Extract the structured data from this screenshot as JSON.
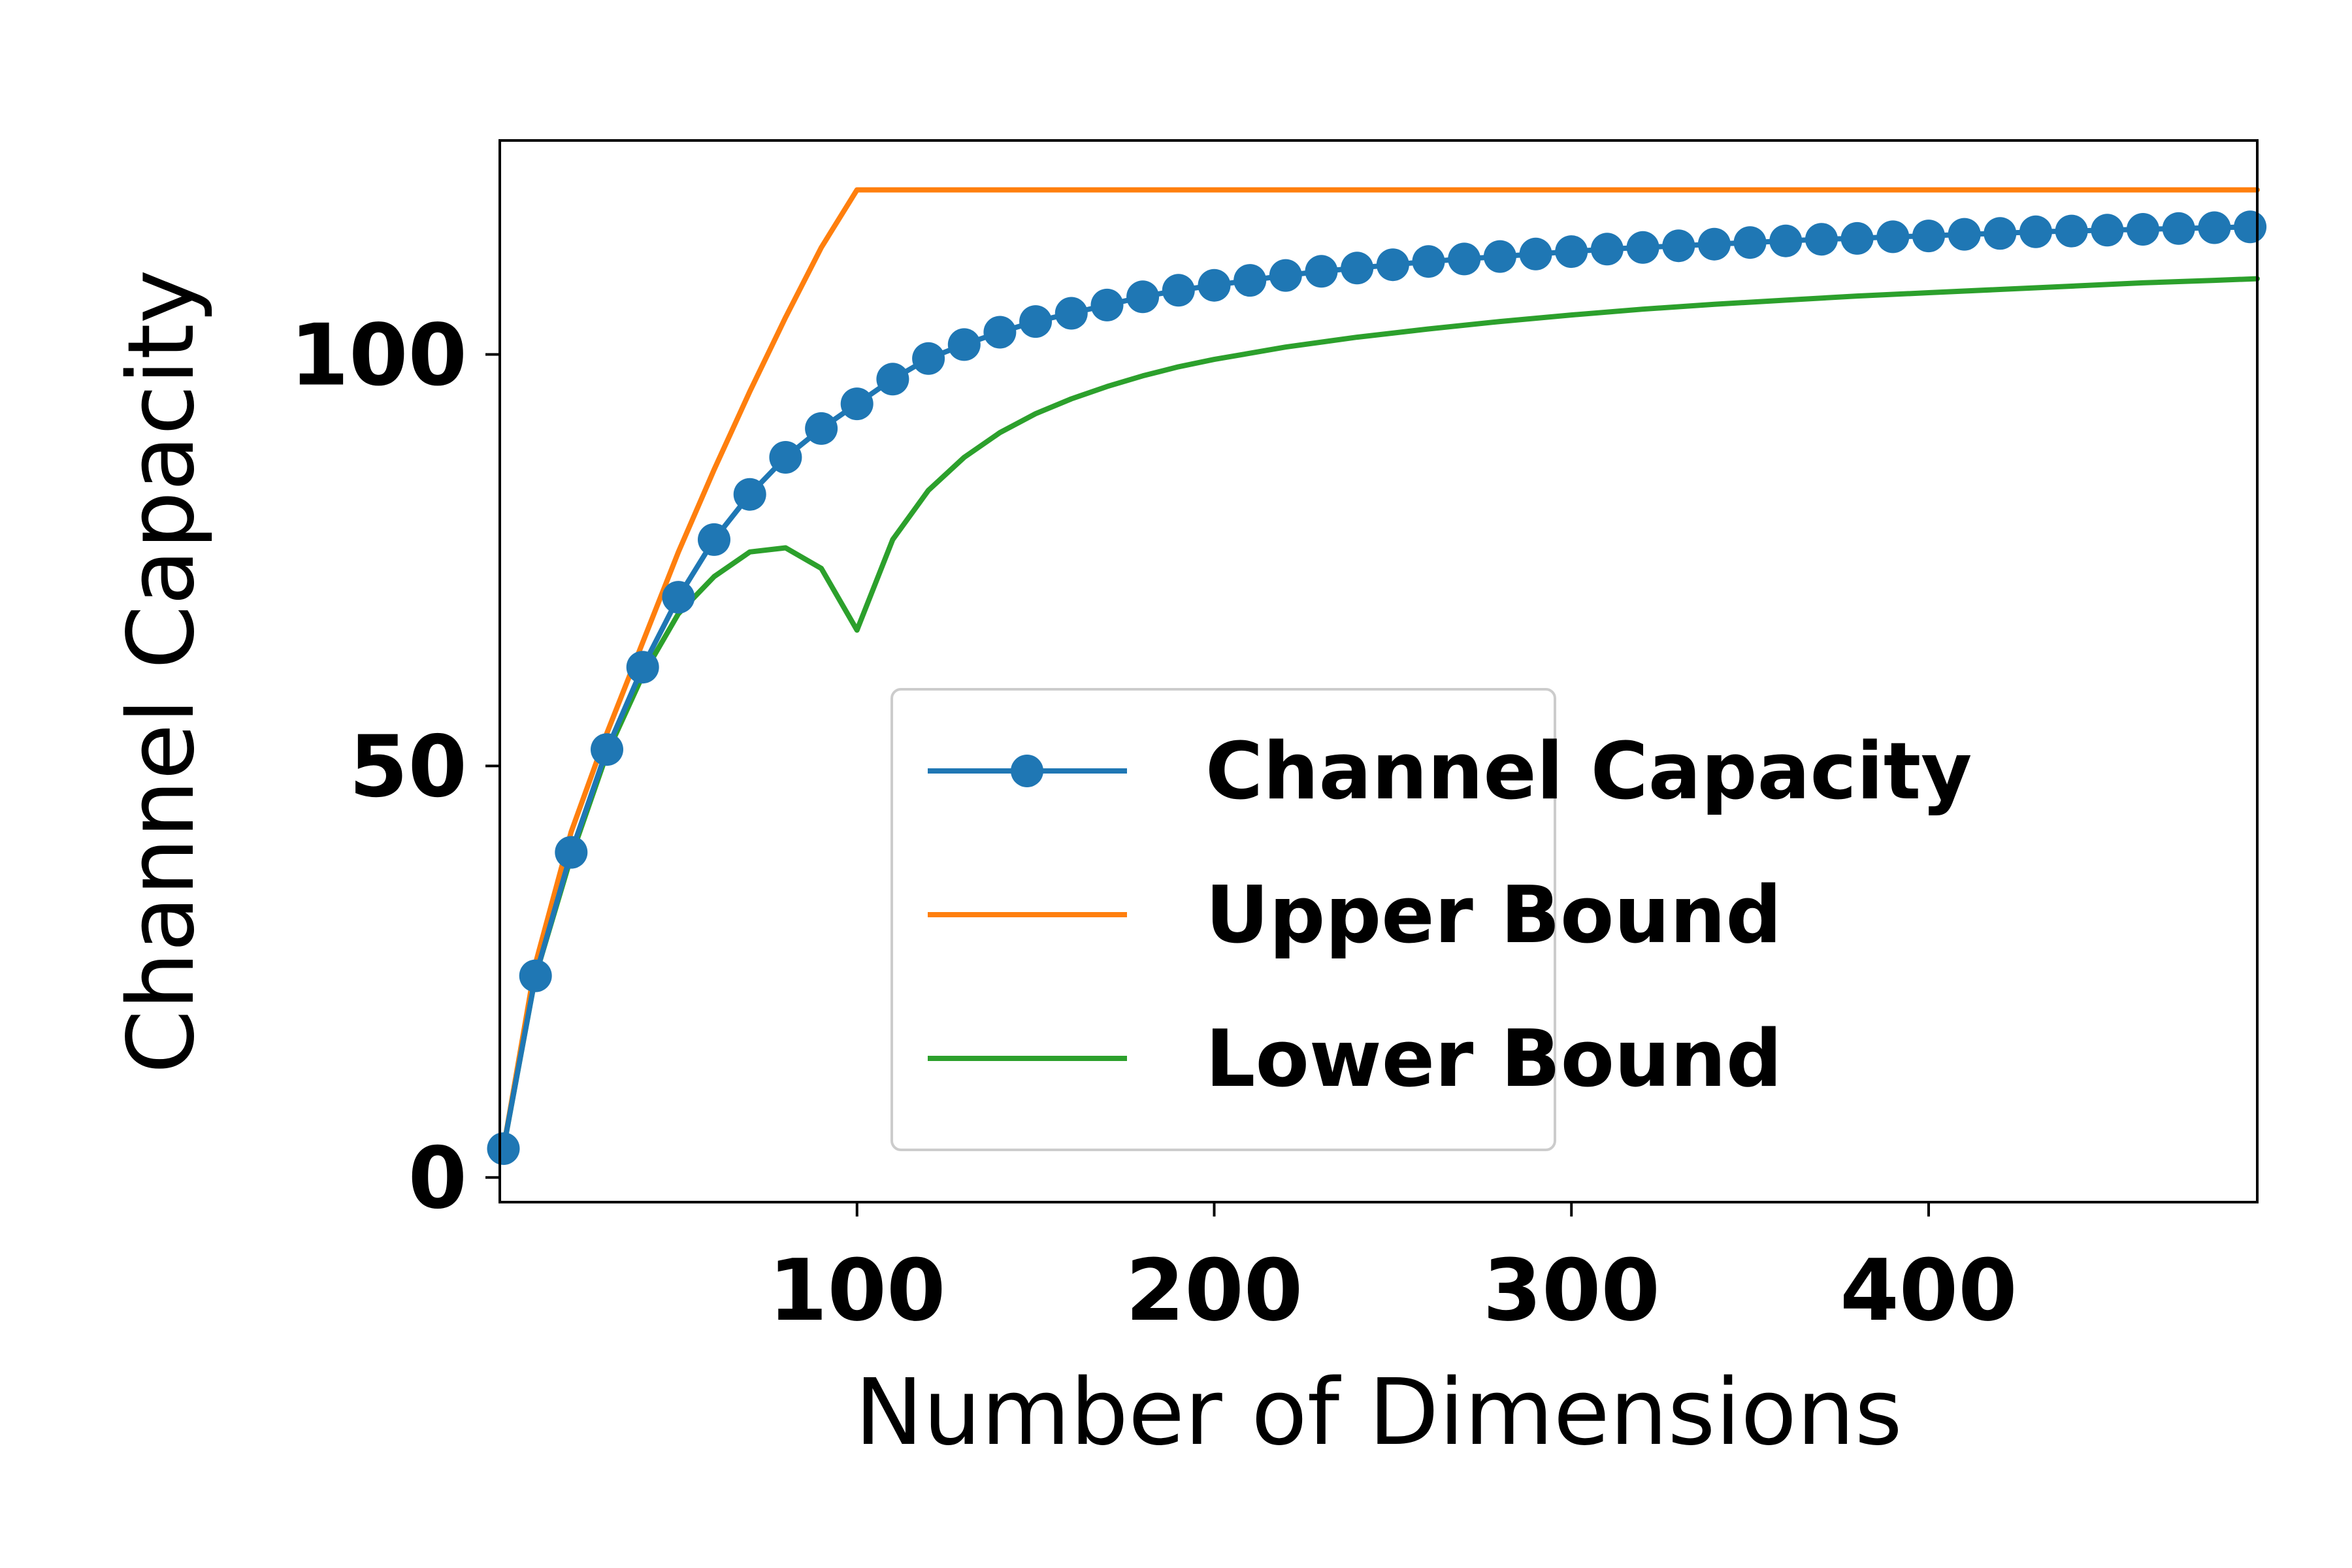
{
  "chart_data": {
    "type": "line",
    "xlabel": "Number of Dimensions",
    "ylabel": "Channel Capacity",
    "xlim": [
      0,
      492
    ],
    "ylim": [
      -3,
      126
    ],
    "xticks": [
      100,
      200,
      300,
      400
    ],
    "yticks": [
      0,
      50,
      100
    ],
    "grid": false,
    "legend_position": "lower-right",
    "series": [
      {
        "name": "Channel Capacity",
        "color": "#1f77b4",
        "marker": "circle",
        "x": [
          1,
          10,
          20,
          30,
          40,
          50,
          60,
          70,
          80,
          90,
          100,
          110,
          120,
          130,
          140,
          150,
          160,
          170,
          180,
          190,
          200,
          210,
          220,
          230,
          240,
          250,
          260,
          270,
          280,
          290,
          300,
          310,
          320,
          330,
          340,
          350,
          360,
          370,
          380,
          390,
          400,
          410,
          420,
          430,
          440,
          450,
          460,
          470,
          480,
          490
        ],
        "y": [
          3.5,
          24.5,
          39.5,
          52,
          62,
          70.5,
          77.5,
          83,
          87.5,
          91,
          94,
          97,
          99.5,
          101.2,
          102.7,
          104,
          105,
          106,
          107,
          107.8,
          108.4,
          109,
          109.6,
          110.1,
          110.5,
          110.9,
          111.3,
          111.6,
          111.9,
          112.2,
          112.5,
          112.8,
          113,
          113.2,
          113.4,
          113.6,
          113.8,
          114,
          114.1,
          114.3,
          114.4,
          114.6,
          114.7,
          114.9,
          115,
          115.1,
          115.2,
          115.3,
          115.4,
          115.5
        ]
      },
      {
        "name": "Upper Bound",
        "color": "#ff7f0e",
        "marker": "none",
        "x": [
          1,
          10,
          20,
          30,
          40,
          50,
          60,
          70,
          80,
          90,
          100,
          492
        ],
        "y": [
          3.5,
          26,
          42,
          54,
          65,
          76,
          86,
          95.5,
          104.5,
          113,
          120,
          120
        ]
      },
      {
        "name": "Lower Bound",
        "color": "#2ca02c",
        "marker": "none",
        "x": [
          1,
          10,
          20,
          30,
          40,
          50,
          60,
          70,
          80,
          90,
          100,
          110,
          120,
          130,
          140,
          150,
          160,
          170,
          180,
          190,
          200,
          220,
          240,
          260,
          280,
          300,
          320,
          340,
          360,
          380,
          400,
          420,
          440,
          460,
          480,
          492
        ],
        "y": [
          3.5,
          24.5,
          39,
          51.5,
          61,
          68.5,
          73,
          76,
          76.5,
          74,
          66.5,
          77.5,
          83.5,
          87.5,
          90.5,
          92.8,
          94.6,
          96.1,
          97.4,
          98.5,
          99.4,
          100.9,
          102.1,
          103.1,
          104,
          104.8,
          105.5,
          106.1,
          106.6,
          107.1,
          107.5,
          107.9,
          108.3,
          108.7,
          109,
          109.2
        ]
      }
    ]
  }
}
